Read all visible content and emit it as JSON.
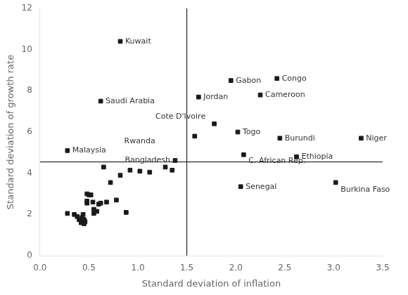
{
  "chart_data": {
    "type": "scatter",
    "xlabel": "Standard deviation of inflation",
    "ylabel": "Standard deviation of growth rate",
    "x": [
      0.82,
      0.62,
      0.28,
      1.38,
      1.95,
      2.42,
      1.62,
      2.25,
      1.78,
      2.02,
      1.58,
      2.45,
      2.08,
      2.62,
      3.28,
      2.05,
      3.02,
      0.28,
      0.35,
      0.38,
      0.4,
      0.42,
      0.42,
      0.43,
      0.44,
      0.45,
      0.45,
      0.46,
      0.48,
      0.48,
      0.48,
      0.5,
      0.52,
      0.54,
      0.55,
      0.55,
      0.58,
      0.6,
      0.62,
      0.65,
      0.68,
      0.72,
      0.78,
      0.82,
      0.88,
      0.92,
      1.02,
      1.12,
      1.28,
      1.35
    ],
    "values": [
      10.4,
      7.5,
      5.1,
      4.62,
      8.5,
      8.6,
      7.7,
      7.8,
      6.4,
      6.0,
      5.8,
      5.7,
      4.9,
      4.8,
      5.7,
      3.35,
      3.55,
      2.05,
      2.0,
      1.9,
      1.75,
      1.65,
      1.6,
      1.85,
      2.0,
      1.55,
      1.75,
      1.65,
      2.55,
      2.65,
      3.0,
      2.95,
      2.95,
      2.6,
      2.25,
      2.05,
      2.15,
      2.5,
      2.55,
      4.3,
      2.6,
      3.55,
      2.7,
      3.9,
      2.1,
      4.15,
      4.1,
      4.05,
      4.3,
      4.15
    ],
    "color": "#1a1a1a",
    "marker": "square",
    "annotations": [
      {
        "text": "Kuwait",
        "x": 0.87,
        "y": 10.4,
        "align": "left"
      },
      {
        "text": "Saudi Arabia",
        "x": 0.67,
        "y": 7.5,
        "align": "left"
      },
      {
        "text": "Malaysia",
        "x": 0.33,
        "y": 5.1,
        "align": "left"
      },
      {
        "text": "Bangladesh",
        "x": 1.33,
        "y": 4.62,
        "align": "right"
      },
      {
        "text": "Gabon",
        "x": 2.0,
        "y": 8.5,
        "align": "left"
      },
      {
        "text": "Congo",
        "x": 2.47,
        "y": 8.6,
        "align": "left"
      },
      {
        "text": "Jordan",
        "x": 1.67,
        "y": 7.7,
        "align": "left"
      },
      {
        "text": "Cameroon",
        "x": 2.3,
        "y": 7.8,
        "align": "left"
      },
      {
        "text": "Cote D'Ivoire",
        "x": 1.18,
        "y": 6.75,
        "align": "left"
      },
      {
        "text": "Togo",
        "x": 2.07,
        "y": 6.0,
        "align": "left"
      },
      {
        "text": "Rwanda",
        "x": 0.86,
        "y": 5.55,
        "align": "left"
      },
      {
        "text": "Burundi",
        "x": 2.5,
        "y": 5.7,
        "align": "left"
      },
      {
        "text": "C. African Rep.",
        "x": 2.13,
        "y": 4.6,
        "align": "left"
      },
      {
        "text": "Ethiopia",
        "x": 2.67,
        "y": 4.8,
        "align": "left"
      },
      {
        "text": "Niger",
        "x": 3.33,
        "y": 5.7,
        "align": "left"
      },
      {
        "text": "Senegal",
        "x": 2.1,
        "y": 3.35,
        "align": "left"
      },
      {
        "text": "Burkina Faso",
        "x": 3.07,
        "y": 3.2,
        "align": "left"
      }
    ],
    "hline": {
      "y": 4.55,
      "color": "#000000"
    },
    "vline": {
      "x": 1.5,
      "color": "#000000"
    },
    "xlim": [
      0.0,
      3.5
    ],
    "ylim": [
      0.0,
      12.0
    ],
    "xticks": [
      {
        "value": 0,
        "label": "0.0"
      },
      0.5,
      {
        "value": 1,
        "label": "1.0"
      },
      1.5,
      {
        "value": 2,
        "label": "2.0"
      },
      2.5,
      {
        "value": 3,
        "label": "3.0"
      },
      3.5
    ],
    "yticks": [
      0,
      2,
      4,
      6,
      8,
      10,
      12
    ],
    "grid": false
  }
}
